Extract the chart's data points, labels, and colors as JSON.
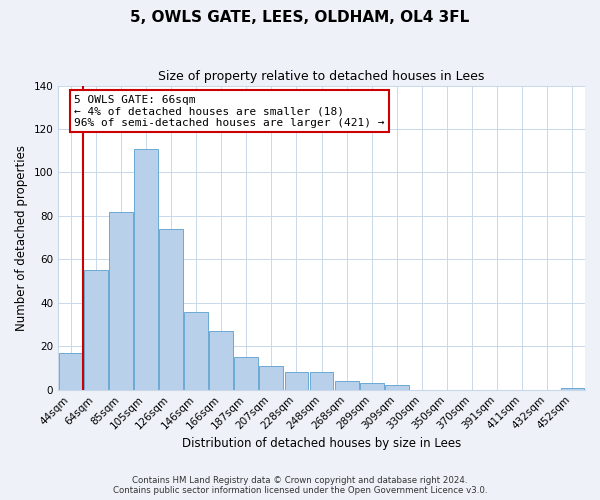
{
  "title": "5, OWLS GATE, LEES, OLDHAM, OL4 3FL",
  "subtitle": "Size of property relative to detached houses in Lees",
  "xlabel": "Distribution of detached houses by size in Lees",
  "ylabel": "Number of detached properties",
  "bar_labels": [
    "44sqm",
    "64sqm",
    "85sqm",
    "105sqm",
    "126sqm",
    "146sqm",
    "166sqm",
    "187sqm",
    "207sqm",
    "228sqm",
    "248sqm",
    "268sqm",
    "289sqm",
    "309sqm",
    "330sqm",
    "350sqm",
    "370sqm",
    "391sqm",
    "411sqm",
    "432sqm",
    "452sqm"
  ],
  "bar_values": [
    17,
    55,
    82,
    111,
    74,
    36,
    27,
    15,
    11,
    8,
    8,
    4,
    3,
    2,
    0,
    0,
    0,
    0,
    0,
    0,
    1
  ],
  "bar_color": "#b8d0ea",
  "bar_edge_color": "#6aaad4",
  "ylim": [
    0,
    140
  ],
  "yticks": [
    0,
    20,
    40,
    60,
    80,
    100,
    120,
    140
  ],
  "vline_x": 0.5,
  "vline_color": "#cc0000",
  "annotation_text": "5 OWLS GATE: 66sqm\n← 4% of detached houses are smaller (18)\n96% of semi-detached houses are larger (421) →",
  "annotation_box_color": "#ffffff",
  "annotation_box_edge_color": "#cc0000",
  "footer_line1": "Contains HM Land Registry data © Crown copyright and database right 2024.",
  "footer_line2": "Contains public sector information licensed under the Open Government Licence v3.0.",
  "bg_color": "#eef2f8",
  "plot_bg_color": "#ffffff",
  "grid_color": "#c8d8ea"
}
